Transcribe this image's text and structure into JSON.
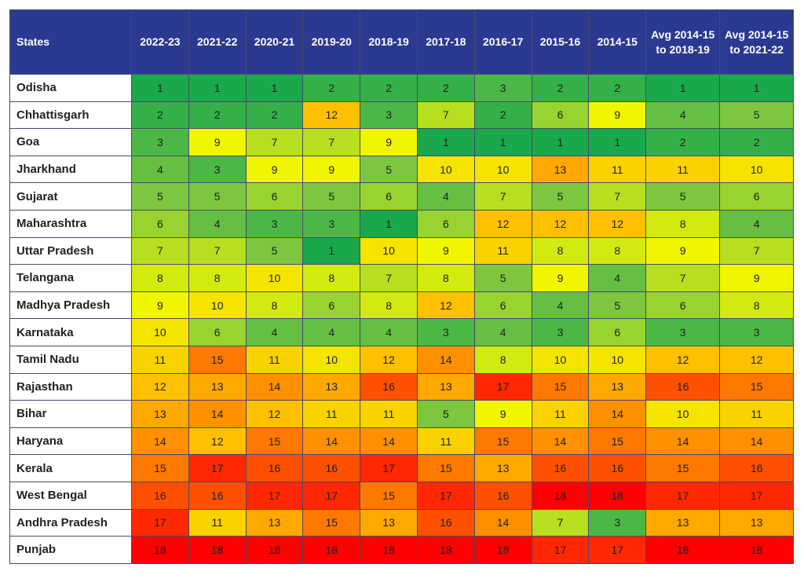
{
  "table": {
    "header": [
      "States",
      "2022-23",
      "2021-22",
      "2020-21",
      "2019-20",
      "2018-19",
      "2017-18",
      "2016-17",
      "2015-16",
      "2014-15",
      "Avg 2014-15 to 2018-19",
      "Avg 2014-15 to 2021-22"
    ],
    "rows": [
      [
        "Odisha",
        1,
        1,
        1,
        2,
        2,
        2,
        3,
        2,
        2,
        1,
        1
      ],
      [
        "Chhattisgarh",
        2,
        2,
        2,
        12,
        3,
        7,
        2,
        6,
        9,
        4,
        5
      ],
      [
        "Goa",
        3,
        9,
        7,
        7,
        9,
        1,
        1,
        1,
        1,
        2,
        2
      ],
      [
        "Jharkhand",
        4,
        3,
        9,
        9,
        5,
        10,
        10,
        13,
        11,
        11,
        10
      ],
      [
        "Gujarat",
        5,
        5,
        6,
        5,
        6,
        4,
        7,
        5,
        7,
        5,
        6
      ],
      [
        "Maharashtra",
        6,
        4,
        3,
        3,
        1,
        6,
        12,
        12,
        12,
        8,
        4
      ],
      [
        "Uttar Pradesh",
        7,
        7,
        5,
        1,
        10,
        9,
        11,
        8,
        8,
        9,
        7
      ],
      [
        "Telangana",
        8,
        8,
        10,
        8,
        7,
        8,
        5,
        9,
        4,
        7,
        9
      ],
      [
        "Madhya Pradesh",
        9,
        10,
        8,
        6,
        8,
        12,
        6,
        4,
        5,
        6,
        8
      ],
      [
        "Karnataka",
        10,
        6,
        4,
        4,
        4,
        3,
        4,
        3,
        6,
        3,
        3
      ],
      [
        "Tamil Nadu",
        11,
        15,
        11,
        10,
        12,
        14,
        8,
        10,
        10,
        12,
        12
      ],
      [
        "Rajasthan",
        12,
        13,
        14,
        13,
        16,
        13,
        17,
        15,
        13,
        16,
        15
      ],
      [
        "Bihar",
        13,
        14,
        12,
        11,
        11,
        5,
        9,
        11,
        14,
        10,
        11
      ],
      [
        "Haryana",
        14,
        12,
        15,
        14,
        14,
        11,
        15,
        14,
        15,
        14,
        14
      ],
      [
        "Kerala",
        15,
        17,
        16,
        16,
        17,
        15,
        13,
        16,
        16,
        15,
        16
      ],
      [
        "West Bengal",
        16,
        16,
        17,
        17,
        15,
        17,
        16,
        18,
        18,
        17,
        17
      ],
      [
        "Andhra Pradesh",
        17,
        11,
        13,
        15,
        13,
        16,
        14,
        7,
        3,
        13,
        13
      ],
      [
        "Punjab",
        18,
        18,
        18,
        18,
        18,
        18,
        18,
        17,
        17,
        18,
        18
      ]
    ]
  }
}
